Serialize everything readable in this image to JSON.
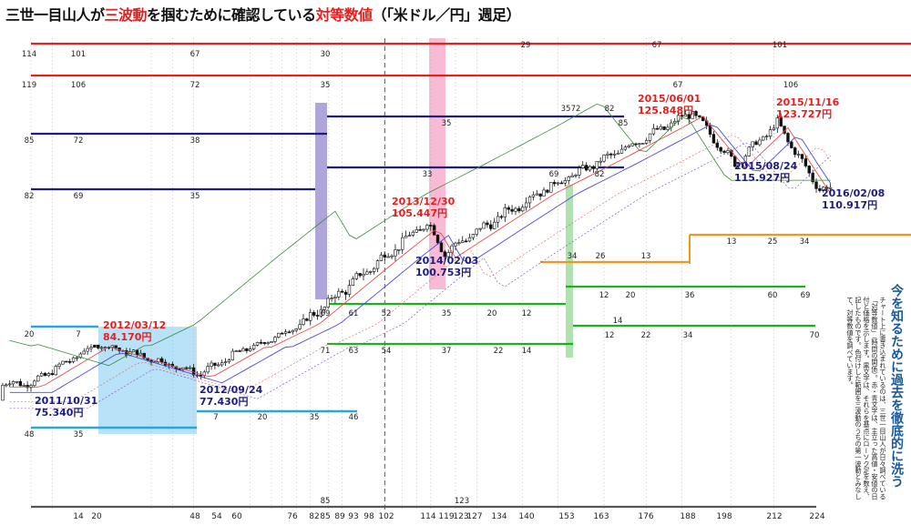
{
  "title": {
    "pre": "三世一目山人が",
    "highlight1": "三波動",
    "mid": "を掴むために確認している",
    "highlight2": "対等数値",
    "post": "（「米ドル／円」週足）"
  },
  "side_panel": {
    "heading": "今を知るために過去を徹底的に洗う",
    "body": "チャート上に書き込まれているのは、三世一目山人が日々調べている「対等数値」（時間の関係）。赤・青文字は、主立った高値・安値の日付と価格を示します。黒文字は、それらを基点にローソク足を数え、記したものです。色付けした範囲を三波動のうちの第一波動とみなして、対等数値を調べています。"
  },
  "chart_data": {
    "type": "candlestick",
    "title": "",
    "xlabel": "",
    "ylabel": "",
    "colors": {
      "red": "#e51e1e",
      "navy": "#1c1c7c",
      "cyan": "#27a7e1",
      "green": "#19b219",
      "orange": "#f7941d",
      "gray": "#555555",
      "purple_band": "#8575c4",
      "pink_band": "#f5a3c7",
      "lightblue_band": "#9fd8f5",
      "lightgreen_band": "#8fd68f"
    },
    "price_points": [
      {
        "label": "2011/10/31",
        "price": "75.340円",
        "x": 0,
        "color": "navy"
      },
      {
        "label": "2012/03/12",
        "price": "84.170円",
        "x": 19,
        "color": "red"
      },
      {
        "label": "2012/09/24",
        "price": "77.430円",
        "x": 48,
        "color": "navy"
      },
      {
        "label": "2013/12/30",
        "price": "105.447円",
        "x": 112,
        "color": "red"
      },
      {
        "label": "2014/02/03",
        "price": "100.753円",
        "x": 117,
        "color": "navy"
      },
      {
        "label": "2015/06/01",
        "price": "125.848円",
        "x": 187,
        "color": "red"
      },
      {
        "label": "2015/08/24",
        "price": "115.927円",
        "x": 199,
        "color": "navy"
      },
      {
        "label": "2015/11/16",
        "price": "123.727円",
        "x": 211,
        "color": "red"
      },
      {
        "label": "2016/02/08",
        "price": "110.917円",
        "x": 223,
        "color": "navy"
      }
    ],
    "x_axis_labels": [
      "14",
      "20",
      "48",
      "54",
      "60",
      "76",
      "82",
      "85",
      "89",
      "93",
      "98",
      "102",
      "114",
      "119",
      "123",
      "127",
      "134",
      "140",
      "153",
      "163",
      "176",
      "188",
      "198",
      "212",
      "224"
    ],
    "count_lines": [
      {
        "color": "red",
        "start_labels": [
          "114",
          "119"
        ],
        "labels": [
          "101",
          "67",
          "30",
          "29",
          "67",
          "101",
          "106",
          "72",
          "35",
          "35",
          "67",
          "106"
        ]
      },
      {
        "color": "navy",
        "start_labels": [
          "85",
          "82"
        ],
        "labels": [
          "72",
          "38",
          "69",
          "35",
          "35",
          "72",
          "82",
          "85",
          "33",
          "69",
          "82"
        ]
      },
      {
        "color": "cyan",
        "start_labels": [
          "20",
          "48"
        ],
        "labels": [
          "7",
          "35",
          "7",
          "20",
          "35",
          "46"
        ]
      },
      {
        "color": "green",
        "start_labels": [],
        "labels": [
          "69",
          "61",
          "52",
          "35",
          "20",
          "12",
          "71",
          "63",
          "54",
          "37",
          "22",
          "14",
          "12",
          "20",
          "36",
          "60",
          "69",
          "14",
          "12",
          "22",
          "34",
          "70"
        ]
      },
      {
        "color": "orange",
        "start_labels": [],
        "labels": [
          "34",
          "26",
          "13",
          "13",
          "25",
          "34"
        ]
      },
      {
        "color": "gray",
        "start_labels": [],
        "labels": [
          "85",
          "123"
        ]
      }
    ]
  }
}
